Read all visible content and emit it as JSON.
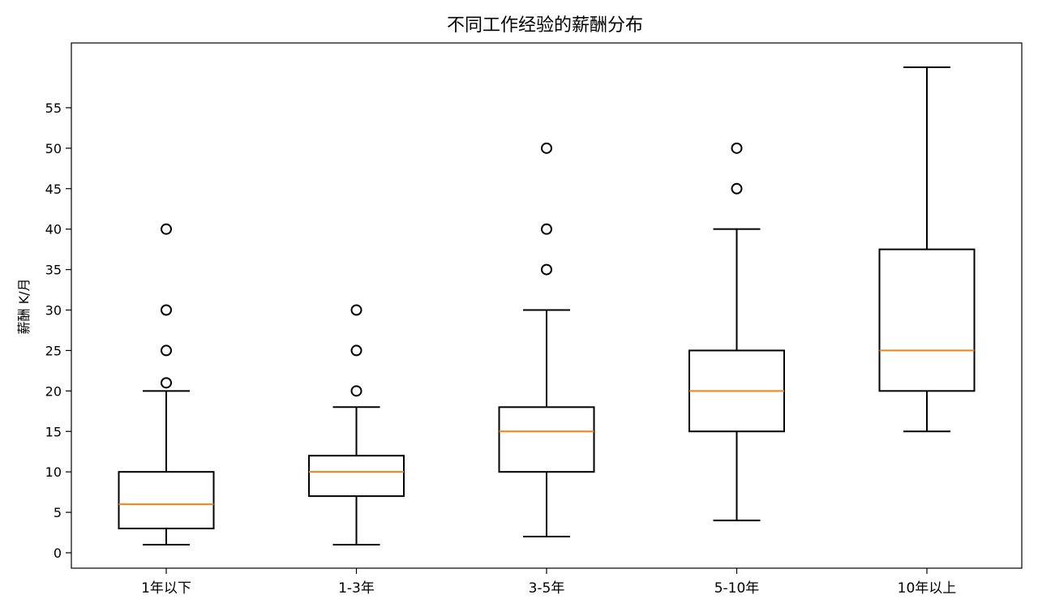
{
  "chart_data": {
    "type": "box",
    "title": "不同工作经验的薪酬分布",
    "xlabel": "",
    "ylabel": "薪酬 K/月",
    "ylim": [
      -2,
      62
    ],
    "yticks": [
      0,
      5,
      10,
      15,
      20,
      25,
      30,
      35,
      40,
      45,
      50,
      55
    ],
    "grid": false,
    "colors": {
      "box": "#000000",
      "median": "#ff7f0e",
      "flier": "#000000"
    },
    "categories": [
      "1年以下",
      "1-3年",
      "3-5年",
      "5-10年",
      "10年以上"
    ],
    "boxes": [
      {
        "category": "1年以下",
        "whisker_low": 1,
        "q1": 3,
        "median": 6,
        "q3": 10,
        "whisker_high": 20,
        "fliers": [
          21,
          25,
          30,
          40
        ]
      },
      {
        "category": "1-3年",
        "whisker_low": 1,
        "q1": 7,
        "median": 10,
        "q3": 12,
        "whisker_high": 18,
        "fliers": [
          20,
          25,
          30
        ]
      },
      {
        "category": "3-5年",
        "whisker_low": 2,
        "q1": 10,
        "median": 15,
        "q3": 18,
        "whisker_high": 30,
        "fliers": [
          35,
          40,
          50
        ]
      },
      {
        "category": "5-10年",
        "whisker_low": 4,
        "q1": 15,
        "median": 20,
        "q3": 25,
        "whisker_high": 40,
        "fliers": [
          45,
          50
        ]
      },
      {
        "category": "10年以上",
        "whisker_low": 15,
        "q1": 20,
        "median": 25,
        "q3": 37.5,
        "whisker_high": 60,
        "fliers": []
      }
    ]
  }
}
